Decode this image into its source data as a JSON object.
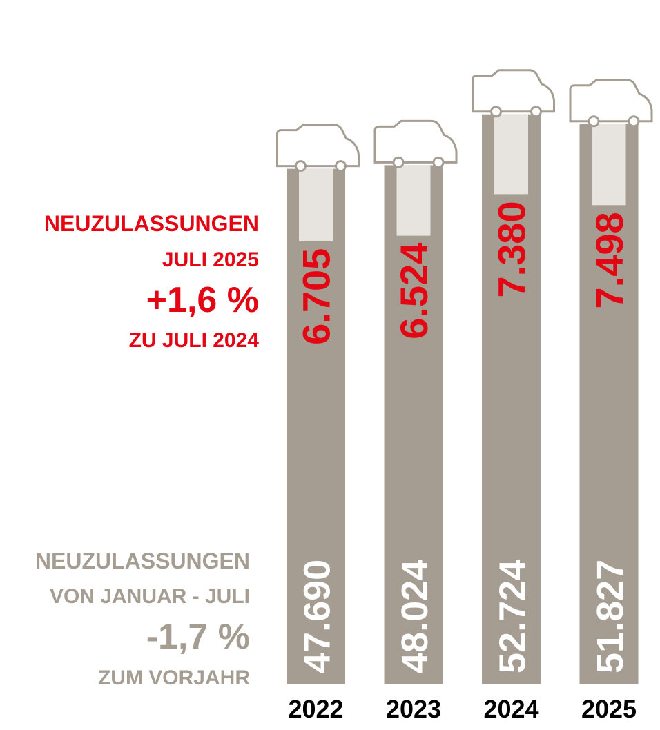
{
  "chart_data": {
    "type": "bar",
    "categories": [
      "2022",
      "2023",
      "2024",
      "2025"
    ],
    "series": [
      {
        "name": "Neuzulassungen Januar - Juli",
        "color": "#a59d92",
        "label_color": "#ffffff",
        "values": [
          47690,
          48024,
          52724,
          51827
        ],
        "value_labels": [
          "47.690",
          "48.024",
          "52.724",
          "51.827"
        ]
      },
      {
        "name": "Neuzulassungen Juli",
        "color": "#e7e4e0",
        "label_color": "#e30613",
        "values": [
          6705,
          6524,
          7380,
          7498
        ],
        "value_labels": [
          "6.705",
          "6.524",
          "7.380",
          "7.498"
        ]
      }
    ],
    "ylim": [
      0,
      63300
    ],
    "annotations": [
      {
        "color": "#e30613",
        "lines": [
          "NEUZULASSUNGEN",
          "JULI 2025",
          "+1,6 %",
          "ZU JULI 2024"
        ]
      },
      {
        "color": "#a59d92",
        "lines": [
          "NEUZULASSUNGEN",
          "VON JANUAR - JULI",
          "-1,7 %",
          "ZUM VORJAHR"
        ]
      }
    ]
  }
}
